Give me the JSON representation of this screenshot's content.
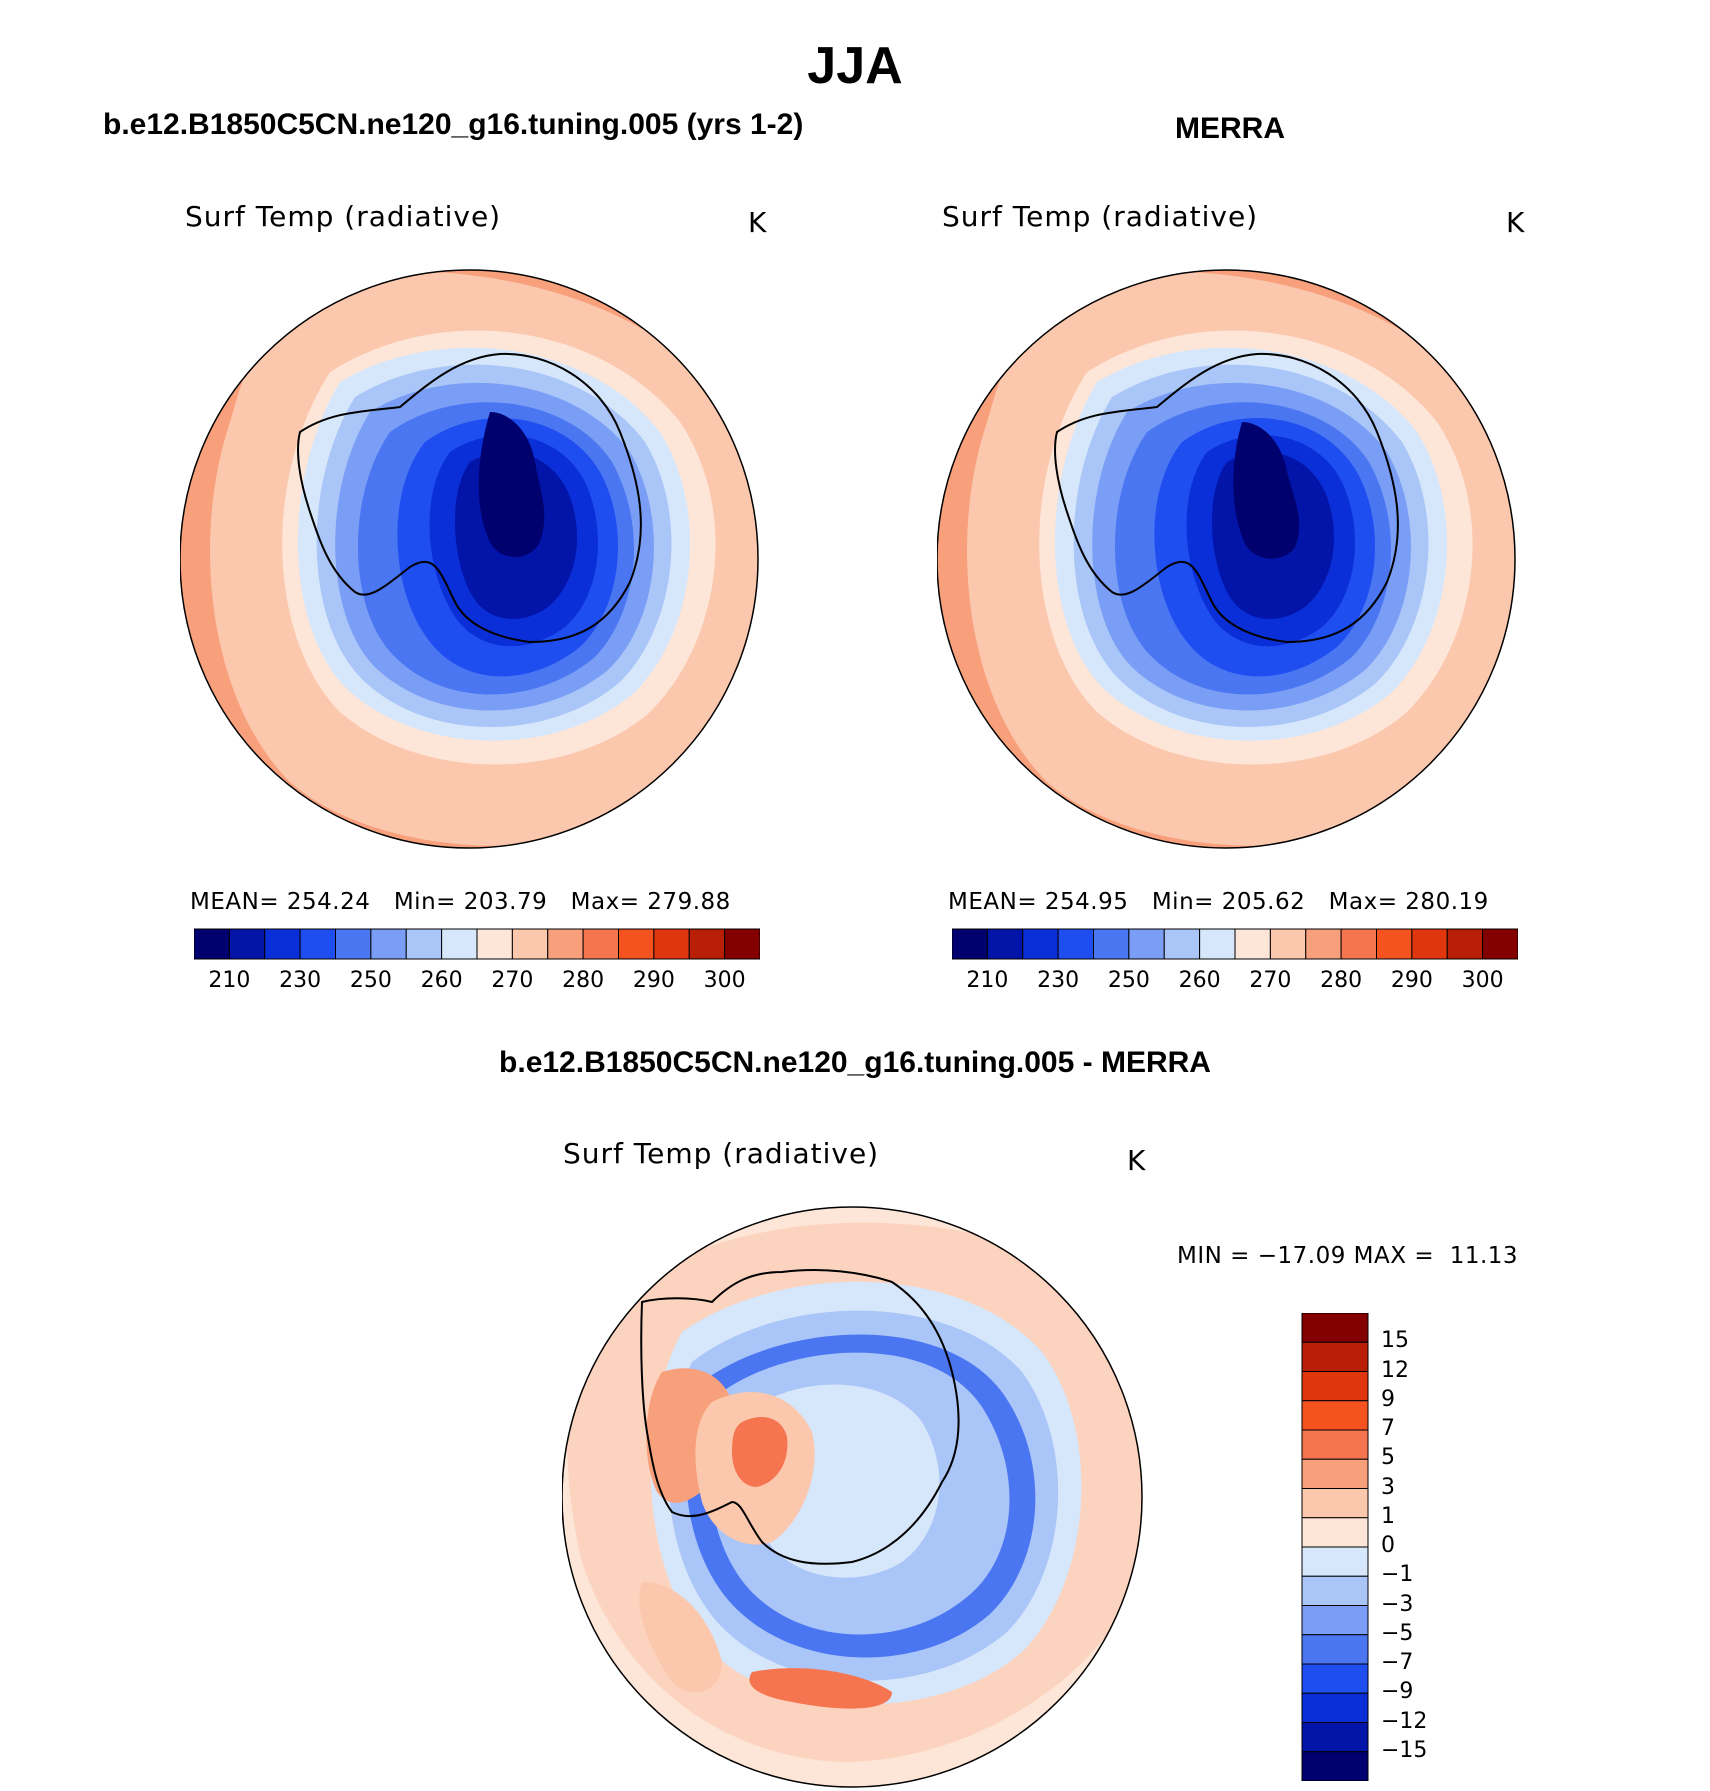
{
  "page": {
    "title": "JJA",
    "left_case_title": "b.e12.B1850C5CN.ne120_g16.tuning.005 (yrs 1-2)",
    "right_case_title": "MERRA",
    "diff_case_title": "b.e12.B1850C5CN.ne120_g16.tuning.005 - MERRA"
  },
  "colors": {
    "abs_scale": [
      "#00006e",
      "#0315a8",
      "#0a2fd8",
      "#1f4ef0",
      "#4b76f2",
      "#7a9ef5",
      "#aac5f7",
      "#d6e6fb",
      "#fde6d8",
      "#fbc7ad",
      "#f8a07c",
      "#f47550",
      "#f4531f",
      "#e0360e",
      "#b81f06",
      "#830000"
    ],
    "diff_scale": [
      "#00006e",
      "#0315a8",
      "#0a2fd8",
      "#1f4ef0",
      "#4b76f2",
      "#7a9ef5",
      "#aac5f7",
      "#d6e6fb",
      "#fde6d8",
      "#fbc7ad",
      "#f8a07c",
      "#f47550",
      "#f4531f",
      "#e0360e",
      "#b81f06",
      "#830000"
    ]
  },
  "chart_data": [
    {
      "type": "heatmap",
      "projection": "south-polar-stereographic",
      "title": "Surf Temp (radiative)",
      "units": "K",
      "stats": {
        "mean_label": "MEAN=",
        "mean": "254.24",
        "min_label": "Min=",
        "min": "203.79",
        "max_label": "Max=",
        "max": "279.88"
      },
      "colorbar_ticks": [
        "210",
        "230",
        "250",
        "260",
        "270",
        "280",
        "290",
        "300"
      ],
      "contour_levels": [
        205,
        210,
        220,
        230,
        240,
        250,
        255,
        260,
        265,
        270,
        275,
        280,
        285,
        290,
        295,
        300
      ],
      "colorbar_orientation": "horizontal"
    },
    {
      "type": "heatmap",
      "projection": "south-polar-stereographic",
      "title": "Surf Temp (radiative)",
      "units": "K",
      "stats": {
        "mean_label": "MEAN=",
        "mean": "254.95",
        "min_label": "Min=",
        "min": "205.62",
        "max_label": "Max=",
        "max": "280.19"
      },
      "colorbar_ticks": [
        "210",
        "230",
        "250",
        "260",
        "270",
        "280",
        "290",
        "300"
      ],
      "contour_levels": [
        205,
        210,
        220,
        230,
        240,
        250,
        255,
        260,
        265,
        270,
        275,
        280,
        285,
        290,
        295,
        300
      ],
      "colorbar_orientation": "horizontal"
    },
    {
      "type": "heatmap",
      "projection": "south-polar-stereographic",
      "title": "Surf Temp (radiative)",
      "units": "K",
      "stats": {
        "min_label": "MIN =",
        "min": "−17.09",
        "max_label": "MAX =",
        "max": "11.13"
      },
      "colorbar_ticks": [
        "15",
        "12",
        "9",
        "7",
        "5",
        "3",
        "1",
        "0",
        "−1",
        "−3",
        "−5",
        "−7",
        "−9",
        "−12",
        "−15"
      ],
      "colorbar_orientation": "vertical"
    }
  ]
}
